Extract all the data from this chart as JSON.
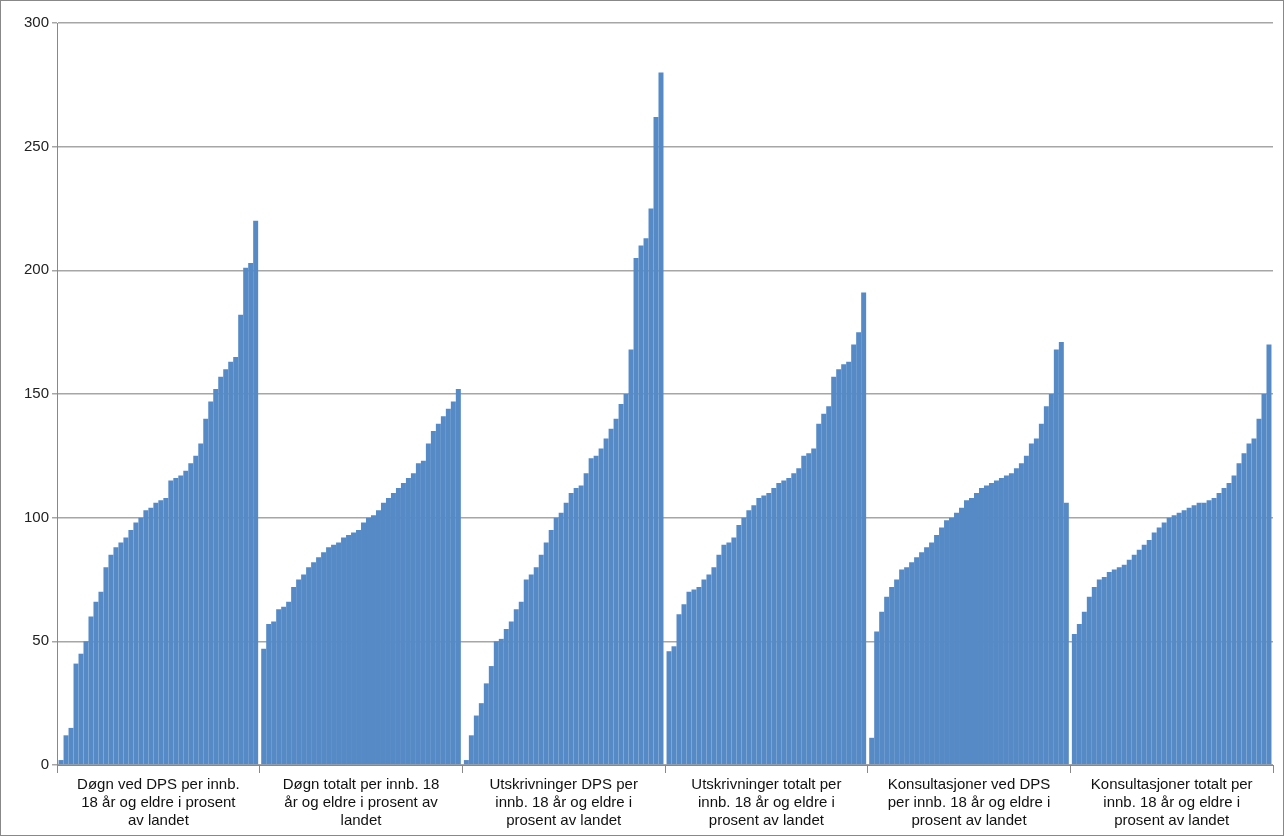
{
  "chart_data": {
    "type": "bar",
    "categories": [
      "Døgn ved DPS per innb. 18 år og eldre i prosent av landet",
      "Døgn totalt per innb. 18 år og eldre i prosent av landet",
      "Utskrivninger DPS per innb. 18 år og eldre i prosent av landet",
      "Utskrivninger totalt per innb. 18 år og eldre i prosent av landet",
      "Konsultasjoner ved DPS per innb. 18 år og eldre i prosent av landet",
      "Konsultasjoner totalt per innb. 18 år og eldre i prosent av landet"
    ],
    "series": [
      {
        "color": "#558ac6",
        "values": [
          2,
          47,
          2,
          46,
          11,
          53
        ]
      },
      {
        "color": "#558ac6",
        "values": [
          12,
          57,
          12,
          48,
          54,
          57
        ]
      },
      {
        "color": "#558ac6",
        "values": [
          15,
          58,
          20,
          61,
          62,
          62
        ]
      },
      {
        "color": "#558ac6",
        "values": [
          41,
          63,
          25,
          65,
          68,
          68
        ]
      },
      {
        "color": "#558ac6",
        "values": [
          45,
          64,
          33,
          70,
          72,
          72
        ]
      },
      {
        "color": "#558ac6",
        "values": [
          50,
          66,
          40,
          71,
          75,
          75
        ]
      },
      {
        "color": "#558ac6",
        "values": [
          60,
          72,
          50,
          72,
          79,
          76
        ]
      },
      {
        "color": "#558ac6",
        "values": [
          66,
          75,
          51,
          75,
          80,
          78
        ]
      },
      {
        "color": "#558ac6",
        "values": [
          70,
          77,
          55,
          77,
          82,
          79
        ]
      },
      {
        "color": "#558ac6",
        "values": [
          80,
          80,
          58,
          80,
          84,
          80
        ]
      },
      {
        "color": "#558ac6",
        "values": [
          85,
          82,
          63,
          85,
          86,
          81
        ]
      },
      {
        "color": "#558ac6",
        "values": [
          88,
          84,
          66,
          89,
          88,
          83
        ]
      },
      {
        "color": "#558ac6",
        "values": [
          90,
          86,
          75,
          90,
          90,
          85
        ]
      },
      {
        "color": "#558ac6",
        "values": [
          92,
          88,
          77,
          92,
          93,
          87
        ]
      },
      {
        "color": "#558ac6",
        "values": [
          95,
          89,
          80,
          97,
          96,
          89
        ]
      },
      {
        "color": "#558ac6",
        "values": [
          98,
          90,
          85,
          100,
          99,
          91
        ]
      },
      {
        "color": "#558ac6",
        "values": [
          100,
          92,
          90,
          103,
          100,
          94
        ]
      },
      {
        "color": "#558ac6",
        "values": [
          103,
          93,
          95,
          105,
          102,
          96
        ]
      },
      {
        "color": "#558ac6",
        "values": [
          104,
          94,
          100,
          108,
          104,
          98
        ]
      },
      {
        "color": "#558ac6",
        "values": [
          106,
          95,
          102,
          109,
          107,
          100
        ]
      },
      {
        "color": "#558ac6",
        "values": [
          107,
          98,
          106,
          110,
          108,
          101
        ]
      },
      {
        "color": "#558ac6",
        "values": [
          108,
          100,
          110,
          112,
          110,
          102
        ]
      },
      {
        "color": "#558ac6",
        "values": [
          115,
          101,
          112,
          114,
          112,
          103
        ]
      },
      {
        "color": "#558ac6",
        "values": [
          116,
          103,
          113,
          115,
          113,
          104
        ]
      },
      {
        "color": "#558ac6",
        "values": [
          117,
          106,
          118,
          116,
          114,
          105
        ]
      },
      {
        "color": "#558ac6",
        "values": [
          119,
          108,
          124,
          118,
          115,
          106
        ]
      },
      {
        "color": "#558ac6",
        "values": [
          122,
          110,
          125,
          120,
          116,
          106
        ]
      },
      {
        "color": "#558ac6",
        "values": [
          125,
          112,
          128,
          125,
          117,
          107
        ]
      },
      {
        "color": "#558ac6",
        "values": [
          130,
          114,
          132,
          126,
          118,
          108
        ]
      },
      {
        "color": "#558ac6",
        "values": [
          140,
          116,
          136,
          128,
          120,
          110
        ]
      },
      {
        "color": "#558ac6",
        "values": [
          147,
          118,
          140,
          138,
          122,
          112
        ]
      },
      {
        "color": "#558ac6",
        "values": [
          152,
          122,
          146,
          142,
          125,
          114
        ]
      },
      {
        "color": "#558ac6",
        "values": [
          157,
          123,
          150,
          145,
          130,
          117
        ]
      },
      {
        "color": "#558ac6",
        "values": [
          160,
          130,
          168,
          157,
          132,
          122
        ]
      },
      {
        "color": "#558ac6",
        "values": [
          163,
          135,
          205,
          160,
          138,
          126
        ]
      },
      {
        "color": "#558ac6",
        "values": [
          165,
          138,
          210,
          162,
          145,
          130
        ]
      },
      {
        "color": "#558ac6",
        "values": [
          182,
          141,
          213,
          163,
          150,
          132
        ]
      },
      {
        "color": "#558ac6",
        "values": [
          201,
          144,
          225,
          170,
          168,
          140
        ]
      },
      {
        "color": "#558ac6",
        "values": [
          203,
          147,
          262,
          175,
          171,
          150
        ]
      },
      {
        "color": "#558ac6",
        "values": [
          220,
          152,
          280,
          191,
          106,
          170
        ]
      }
    ],
    "ylim": [
      0,
      300
    ],
    "yticks": [
      0,
      50,
      100,
      150,
      200,
      250,
      300
    ],
    "grid": "y",
    "legend": false
  }
}
